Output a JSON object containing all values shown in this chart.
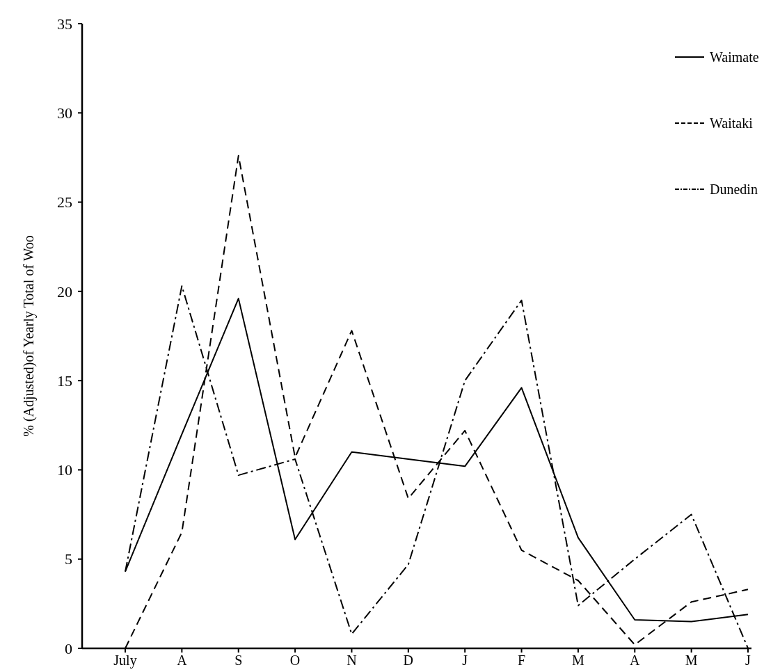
{
  "chart_data": {
    "type": "line",
    "ylabel": "% (Adjusted)of Yearly Total of Woo",
    "categories": [
      "July",
      "A",
      "S",
      "O",
      "N",
      "D",
      "J",
      "F",
      "M",
      "A",
      "M",
      "J"
    ],
    "ylim": [
      0,
      35
    ],
    "yticks": [
      0,
      5,
      10,
      15,
      20,
      25,
      30,
      35
    ],
    "grid": false,
    "legend": "top right",
    "series": [
      {
        "name": "Waimate",
        "color": "#000000",
        "line_style": "solid",
        "values": [
          4.3,
          12.0,
          19.6,
          6.1,
          11.0,
          10.6,
          10.2,
          14.6,
          6.2,
          1.6,
          1.5,
          1.9
        ]
      },
      {
        "name": "Waitaki",
        "color": "#000000",
        "line_style": "dashed",
        "values": [
          0,
          6.5,
          27.6,
          10.7,
          17.8,
          8.4,
          12.2,
          5.5,
          3.8,
          0.2,
          2.6,
          3.3
        ]
      },
      {
        "name": "Dunedin",
        "color": "#000000",
        "line_style": "dashdot",
        "values": [
          4.3,
          20.3,
          9.7,
          10.6,
          0.8,
          4.7,
          15.0,
          19.5,
          2.4,
          5.0,
          7.5,
          0
        ]
      }
    ]
  }
}
